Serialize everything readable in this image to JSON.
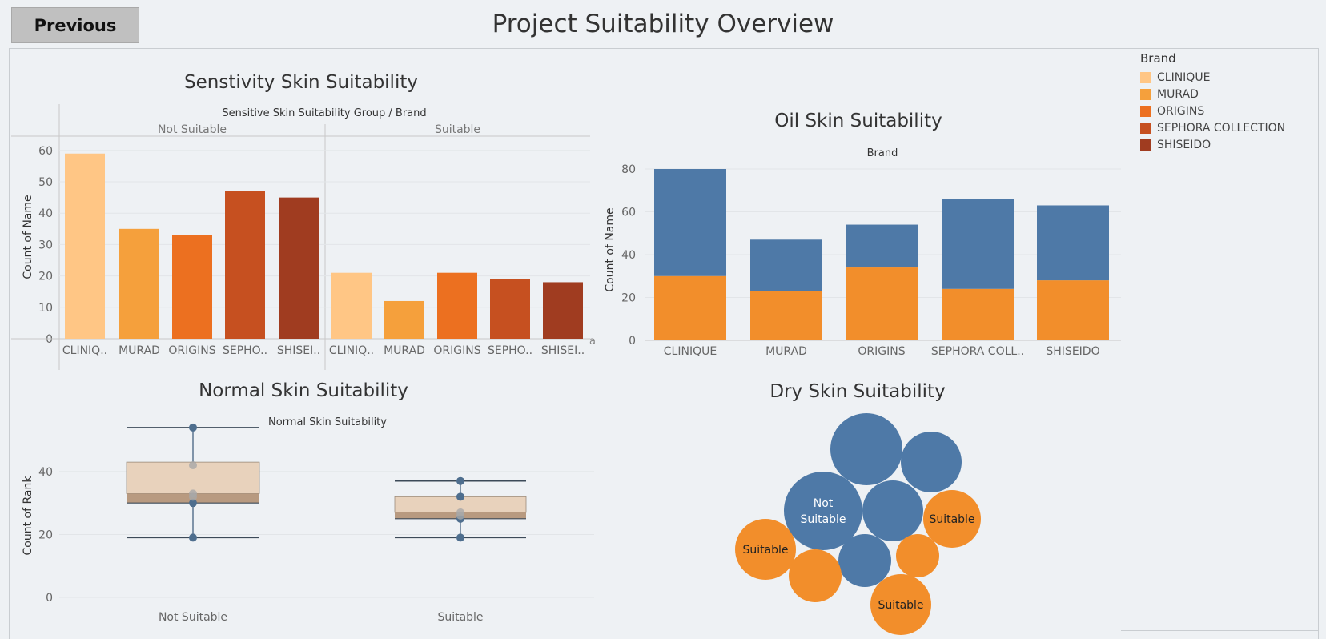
{
  "header": {
    "previous_label": "Previous",
    "title": "Project Suitability Overview"
  },
  "legend": {
    "title": "Brand",
    "items": [
      {
        "label": "CLINIQUE",
        "color": "#ffc685"
      },
      {
        "label": "MURAD",
        "color": "#f5a03c"
      },
      {
        "label": "ORIGINS",
        "color": "#ec7020"
      },
      {
        "label": "SEPHORA COLLECTION",
        "color": "#c65020"
      },
      {
        "label": "SHISEIDO",
        "color": "#a03c20"
      }
    ]
  },
  "chart_data": [
    {
      "id": "sensitivity",
      "type": "bar",
      "title": "Senstivity Skin Suitability",
      "header": "Sensitive Skin Suitability Group  /  Brand",
      "ylabel": "Count of Name",
      "ylim": [
        0,
        60
      ],
      "yticks": [
        0,
        10,
        20,
        30,
        40,
        50,
        60
      ],
      "groups": [
        "Not Suitable",
        "Suitable"
      ],
      "categories": [
        "CLINIQ..",
        "MURAD",
        "ORIGINS",
        "SEPHO..",
        "SHISEI.."
      ],
      "colors": [
        "#ffc685",
        "#f5a03c",
        "#ec7020",
        "#c65020",
        "#a03c20"
      ],
      "series": [
        {
          "group": "Not Suitable",
          "values": [
            59,
            35,
            33,
            47,
            45
          ]
        },
        {
          "group": "Suitable",
          "values": [
            21,
            12,
            21,
            19,
            18
          ]
        }
      ],
      "corner_mark": "a"
    },
    {
      "id": "oil",
      "type": "bar",
      "stacked": true,
      "title": "Oil Skin Suitability",
      "header": "Brand",
      "ylabel": "Count of Name",
      "ylim": [
        0,
        80
      ],
      "yticks": [
        0,
        20,
        40,
        60,
        80
      ],
      "categories": [
        "CLINIQUE",
        "MURAD",
        "ORIGINS",
        "SEPHORA COLL..",
        "SHISEIDO"
      ],
      "series": [
        {
          "color": "#f28e2b",
          "values": [
            30,
            23,
            34,
            24,
            28
          ]
        },
        {
          "color": "#4e79a7",
          "values": [
            50,
            24,
            20,
            42,
            35
          ]
        }
      ]
    },
    {
      "id": "normal",
      "type": "boxplot",
      "title": "Normal Skin Suitability",
      "header": "Normal Skin Suitability",
      "ylabel": "Count of Rank",
      "ylim": [
        0,
        55
      ],
      "yticks": [
        0,
        20,
        40
      ],
      "categories": [
        "Not Suitable",
        "Suitable"
      ],
      "boxes": [
        {
          "whisker_low": 19,
          "q1": 30,
          "median": 33,
          "q3": 43,
          "whisker_high": 54,
          "points": [
            19,
            30,
            32,
            33,
            42,
            54
          ]
        },
        {
          "whisker_low": 19,
          "q1": 25,
          "median": 27,
          "q3": 32,
          "whisker_high": 37,
          "points": [
            19,
            25,
            26,
            27,
            32,
            37
          ]
        }
      ]
    },
    {
      "id": "dry",
      "type": "packed-bubble",
      "title": "Dry Skin Suitability",
      "bubbles": [
        {
          "label": "",
          "color": "#4e79a7",
          "size": 1.0
        },
        {
          "label": "",
          "color": "#4e79a7",
          "size": 0.72
        },
        {
          "label": "Not Suitable",
          "color": "#4e79a7",
          "size": 1.3
        },
        {
          "label": "",
          "color": "#4e79a7",
          "size": 0.72
        },
        {
          "label": "",
          "color": "#4e79a7",
          "size": 0.52
        },
        {
          "label": "Suitable",
          "color": "#f28e2b",
          "size": 0.64
        },
        {
          "label": "Suitable",
          "color": "#f28e2b",
          "size": 0.71
        },
        {
          "label": "",
          "color": "#f28e2b",
          "size": 0.52
        },
        {
          "label": "",
          "color": "#f28e2b",
          "size": 0.34
        },
        {
          "label": "Suitable",
          "color": "#f28e2b",
          "size": 0.71
        }
      ]
    }
  ]
}
